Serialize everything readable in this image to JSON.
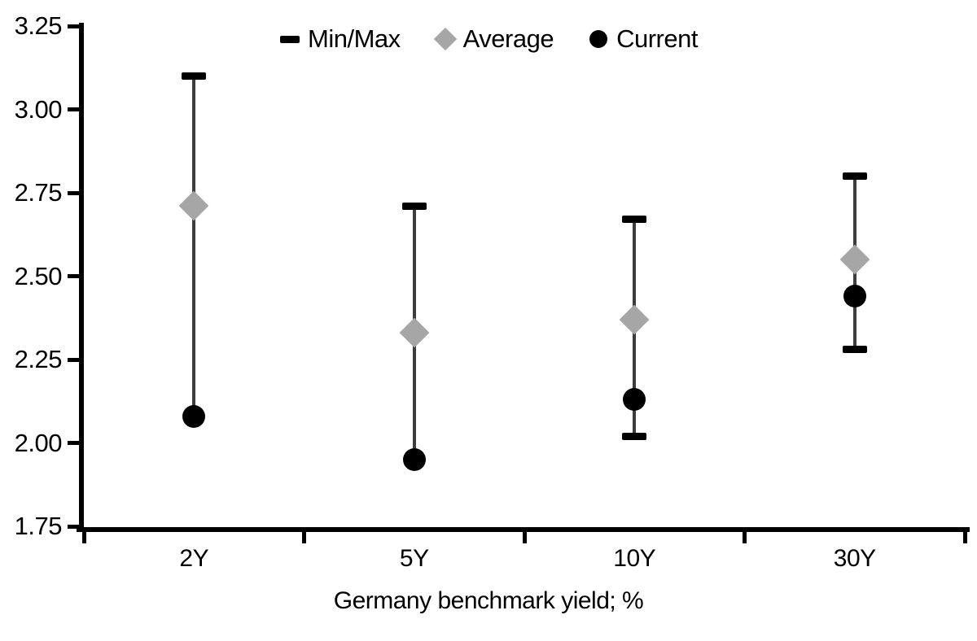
{
  "chart_data": {
    "type": "scatter",
    "subtype": "min-max-range-with-markers",
    "title": "",
    "xlabel": "Germany benchmark yield; %",
    "ylabel": "",
    "categories": [
      "2Y",
      "5Y",
      "10Y",
      "30Y"
    ],
    "series": [
      {
        "name": "Min/Max",
        "marker": "dash",
        "role": "range",
        "min": [
          2.08,
          1.95,
          2.02,
          2.28
        ],
        "max": [
          3.1,
          2.71,
          2.67,
          2.8
        ]
      },
      {
        "name": "Average",
        "marker": "diamond",
        "values": [
          2.71,
          2.33,
          2.37,
          2.55
        ]
      },
      {
        "name": "Current",
        "marker": "circle",
        "values": [
          2.08,
          1.95,
          2.13,
          2.44
        ]
      }
    ],
    "ylim": [
      1.75,
      3.25
    ],
    "ytick_step": 0.25,
    "ytick_labels": [
      "3.25",
      "3.00",
      "2.75",
      "2.50",
      "2.25",
      "2.00",
      "1.75"
    ],
    "grid": false,
    "legend_position": "top-center"
  },
  "colors": {
    "marker_black": "#000000",
    "average_gray": "#a6a6a6",
    "whisker_gray": "#3d3d3d",
    "background": "#ffffff"
  }
}
